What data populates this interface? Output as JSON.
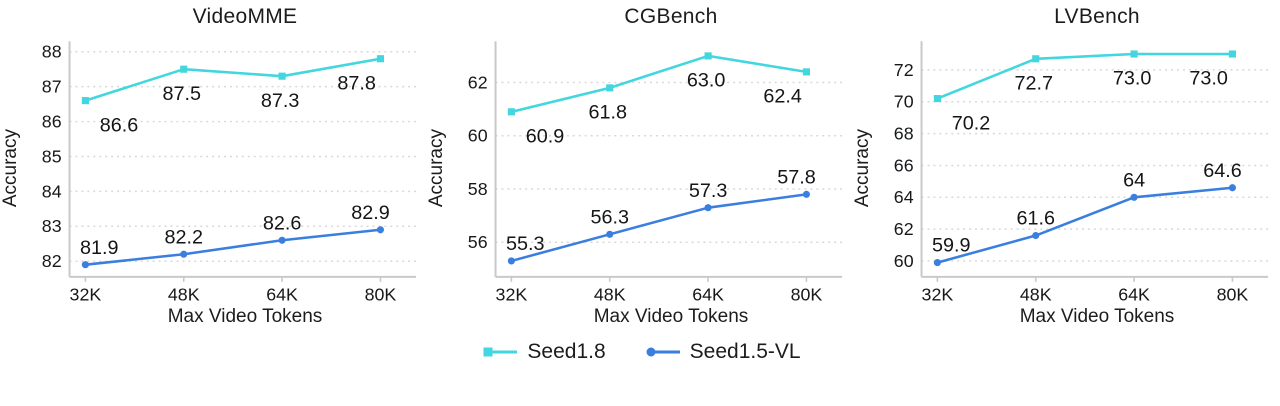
{
  "colors": {
    "seed18": "#42d6de",
    "seed15vl": "#3a7fe0",
    "grid": "#d8d8d8",
    "axis": "#c9c9c9",
    "text": "#17181a"
  },
  "legend": {
    "items": [
      {
        "label": "Seed1.8",
        "color": "#42d6de",
        "marker": "square"
      },
      {
        "label": "Seed1.5-VL",
        "color": "#3a7fe0",
        "marker": "circle"
      }
    ]
  },
  "chart_data": [
    {
      "type": "line",
      "title": "VideoMME",
      "xlabel": "Max Video Tokens",
      "ylabel": "Accuracy",
      "categories": [
        "32K",
        "48K",
        "64K",
        "80K"
      ],
      "yticks": [
        82,
        83,
        84,
        85,
        86,
        87,
        88
      ],
      "ylim": [
        81.55,
        88.3
      ],
      "grid": "dotted-horizontal",
      "legend_position": "bottom-shared",
      "series": [
        {
          "name": "Seed1.8",
          "color": "#42d6de",
          "marker": "square",
          "label_side": "below",
          "values": [
            86.6,
            87.5,
            87.3,
            87.8
          ],
          "point_labels": [
            "86.6",
            "87.5",
            "87.3",
            "87.8"
          ]
        },
        {
          "name": "Seed1.5-VL",
          "color": "#3a7fe0",
          "marker": "circle",
          "label_side": "above",
          "values": [
            81.9,
            82.2,
            82.6,
            82.9
          ],
          "point_labels": [
            "81.9",
            "82.2",
            "82.6",
            "82.9"
          ]
        }
      ]
    },
    {
      "type": "line",
      "title": "CGBench",
      "xlabel": "Max Video Tokens",
      "ylabel": "Accuracy",
      "categories": [
        "32K",
        "48K",
        "64K",
        "80K"
      ],
      "yticks": [
        56,
        58,
        60,
        62
      ],
      "ylim": [
        54.7,
        63.55
      ],
      "grid": "dotted-horizontal",
      "legend_position": "bottom-shared",
      "series": [
        {
          "name": "Seed1.8",
          "color": "#42d6de",
          "marker": "square",
          "label_side": "below",
          "values": [
            60.9,
            61.8,
            63.0,
            62.4
          ],
          "point_labels": [
            "60.9",
            "61.8",
            "63.0",
            "62.4"
          ]
        },
        {
          "name": "Seed1.5-VL",
          "color": "#3a7fe0",
          "marker": "circle",
          "label_side": "above",
          "values": [
            55.3,
            56.3,
            57.3,
            57.8
          ],
          "point_labels": [
            "55.3",
            "56.3",
            "57.3",
            "57.8"
          ]
        }
      ]
    },
    {
      "type": "line",
      "title": "LVBench",
      "xlabel": "Max Video Tokens",
      "ylabel": "Accuracy",
      "categories": [
        "32K",
        "48K",
        "64K",
        "80K"
      ],
      "yticks": [
        60,
        62,
        64,
        66,
        68,
        70,
        72
      ],
      "ylim": [
        59.0,
        73.8
      ],
      "grid": "dotted-horizontal",
      "legend_position": "bottom-shared",
      "series": [
        {
          "name": "Seed1.8",
          "color": "#42d6de",
          "marker": "square",
          "label_side": "below",
          "values": [
            70.2,
            72.7,
            73.0,
            73.0
          ],
          "point_labels": [
            "70.2",
            "72.7",
            "73.0",
            "73.0"
          ]
        },
        {
          "name": "Seed1.5-VL",
          "color": "#3a7fe0",
          "marker": "circle",
          "label_side": "above",
          "values": [
            59.9,
            61.6,
            64,
            64.6
          ],
          "point_labels": [
            "59.9",
            "61.6",
            "64",
            "64.6"
          ]
        }
      ]
    }
  ]
}
